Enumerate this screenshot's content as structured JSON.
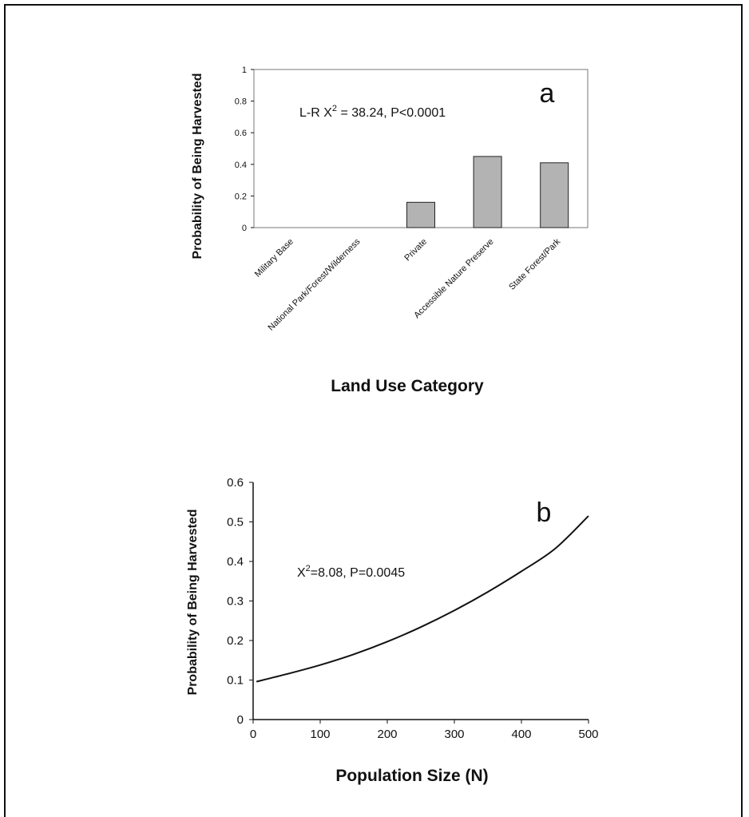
{
  "chart_data": [
    {
      "type": "bar",
      "panel_letter": "a",
      "categories": [
        "Military Base",
        "National Park/Forest/Wilderness",
        "Private",
        "Accessible Nature Preserve",
        "State Forest/Park"
      ],
      "values": [
        0,
        0,
        0.16,
        0.45,
        0.41
      ],
      "ylim": [
        0,
        1
      ],
      "yticks": [
        "0",
        "0.2",
        "0.4",
        "0.6",
        "0.8",
        "1"
      ],
      "ylabel": "Probability of Being Harvested",
      "xlabel": "Land Use Category",
      "annotation_prefix": "L-R X",
      "annotation_sup": "2",
      "annotation_suffix": " = 38.24, P<0.0001",
      "bar_color": "#b3b3b3"
    },
    {
      "type": "line",
      "panel_letter": "b",
      "x": [
        5,
        50,
        100,
        150,
        200,
        250,
        300,
        350,
        400,
        450,
        500
      ],
      "y": [
        0.096,
        0.115,
        0.138,
        0.165,
        0.197,
        0.234,
        0.276,
        0.323,
        0.375,
        0.432,
        0.515
      ],
      "xlim": [
        0,
        500
      ],
      "ylim": [
        0,
        0.6
      ],
      "xticks": [
        "0",
        "100",
        "200",
        "300",
        "400",
        "500"
      ],
      "yticks": [
        "0",
        "0.1",
        "0.2",
        "0.3",
        "0.4",
        "0.5",
        "0.6"
      ],
      "ylabel": "Probability of Being Harvested",
      "xlabel": "Population Size (N)",
      "annotation_prefix": "X",
      "annotation_sup": "2",
      "annotation_suffix": "=8.08, P=0.0045"
    }
  ]
}
